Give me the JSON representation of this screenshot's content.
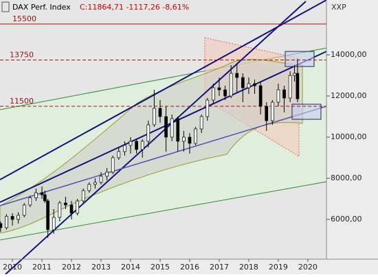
{
  "chart_data": {
    "type": "candlestick",
    "title": "DAX Perf. Index",
    "quote": "C:11864,71 -1117,26 -8,61%",
    "currency": "XXP",
    "x": [
      2010.1,
      2010.3,
      2010.5,
      2010.7,
      2010.9,
      2011.1,
      2011.3,
      2011.5,
      2011.6,
      2011.7,
      2011.9,
      2012.1,
      2012.3,
      2012.5,
      2012.7,
      2012.9,
      2013.1,
      2013.3,
      2013.5,
      2013.7,
      2013.9,
      2014.1,
      2014.3,
      2014.5,
      2014.7,
      2014.9,
      2015.1,
      2015.3,
      2015.5,
      2015.7,
      2015.9,
      2016.1,
      2016.3,
      2016.5,
      2016.7,
      2016.9,
      2017.1,
      2017.3,
      2017.5,
      2017.7,
      2017.9,
      2018.1,
      2018.3,
      2018.5,
      2018.7,
      2018.9,
      2019.1,
      2019.3,
      2019.5,
      2019.7,
      2019.9,
      2020.05,
      2020.15
    ],
    "open": [
      5800,
      5600,
      6150,
      6000,
      6200,
      6700,
      7050,
      7300,
      7200,
      6900,
      5500,
      6100,
      6800,
      6700,
      6300,
      6900,
      7400,
      7700,
      7800,
      8100,
      8300,
      9000,
      9300,
      9600,
      9800,
      9400,
      9800,
      10600,
      11400,
      11000,
      10000,
      10900,
      9800,
      10000,
      9700,
      10400,
      11000,
      11800,
      12400,
      12300,
      12000,
      13100,
      12900,
      12400,
      12600,
      12500,
      11500,
      10800,
      11700,
      12300,
      11900,
      13000,
      13100
    ],
    "high": [
      5900,
      6250,
      6300,
      6350,
      6800,
      7150,
      7500,
      7600,
      7400,
      7000,
      6500,
      6900,
      7100,
      6900,
      7000,
      7500,
      7800,
      8000,
      8300,
      8500,
      9100,
      9500,
      9800,
      10000,
      9900,
      9900,
      10800,
      12300,
      11800,
      11500,
      11100,
      11000,
      10300,
      10200,
      10500,
      11100,
      11900,
      12600,
      12900,
      12500,
      13500,
      13600,
      13100,
      12900,
      12800,
      12700,
      11700,
      11800,
      12600,
      12500,
      13200,
      13500,
      13795
    ],
    "low": [
      5400,
      5500,
      5700,
      5800,
      6100,
      6600,
      6900,
      7000,
      6800,
      5100,
      5300,
      5900,
      6500,
      6000,
      6200,
      6800,
      7300,
      7500,
      7700,
      7900,
      8200,
      8900,
      9100,
      9200,
      9200,
      9000,
      9500,
      10500,
      10700,
      9300,
      9800,
      9300,
      9300,
      9200,
      9600,
      10200,
      10800,
      11600,
      12000,
      11800,
      11900,
      12200,
      11700,
      12100,
      12100,
      11100,
      10300,
      10600,
      11500,
      11200,
      11700,
      12700,
      11700
    ],
    "close": [
      5600,
      6150,
      6000,
      6200,
      6700,
      7050,
      7300,
      7200,
      6900,
      5500,
      6100,
      6800,
      6700,
      6300,
      6900,
      7400,
      7700,
      7800,
      8100,
      8300,
      9000,
      9300,
      9600,
      9800,
      9400,
      9800,
      10600,
      11400,
      11000,
      10000,
      10900,
      9800,
      10000,
      9700,
      10400,
      11000,
      11800,
      12400,
      12300,
      12000,
      13100,
      12900,
      12400,
      12600,
      12500,
      11500,
      10800,
      11700,
      12300,
      11900,
      13000,
      13100,
      11865
    ],
    "levels": [
      15500,
      13750,
      11500
    ],
    "xlim": [
      2010.08,
      2021.13
    ],
    "xticks": [
      {
        "value": 2010.5,
        "label": "2010"
      },
      {
        "value": 2011.5,
        "label": "2011"
      },
      {
        "value": 2012.5,
        "label": "2012"
      },
      {
        "value": 2013.5,
        "label": "2013"
      },
      {
        "value": 2014.5,
        "label": "2014"
      },
      {
        "value": 2015.5,
        "label": "2015"
      },
      {
        "value": 2016.5,
        "label": "2016"
      },
      {
        "value": 2017.5,
        "label": "2017"
      },
      {
        "value": 2018.5,
        "label": "2018"
      },
      {
        "value": 2019.5,
        "label": "2019"
      },
      {
        "value": 2020.5,
        "label": "2020"
      }
    ],
    "ylim": [
      4067,
      16667
    ],
    "yticks": [
      {
        "value": 6000,
        "label": "6000,00"
      },
      {
        "value": 8000,
        "label": "8000,00"
      },
      {
        "value": 10000,
        "label": "10000,00"
      },
      {
        "value": 12000,
        "label": "12000,00"
      },
      {
        "value": 14000,
        "label": "14000,00"
      }
    ]
  }
}
